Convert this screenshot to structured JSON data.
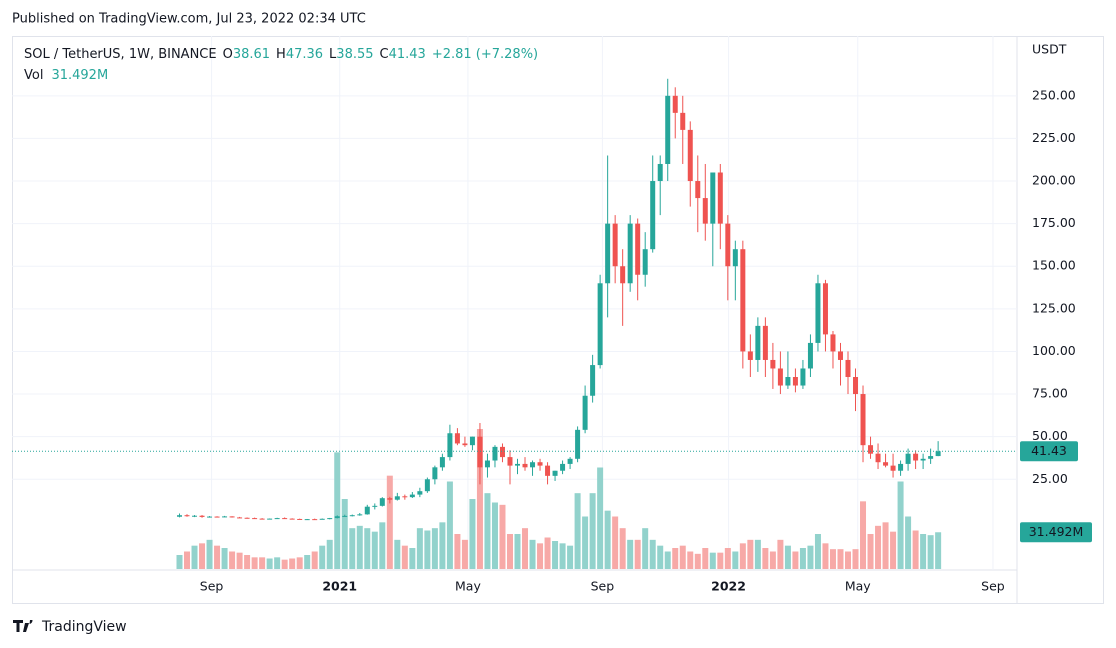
{
  "header": {
    "published": "Published on TradingView.com, Jul 23, 2022 02:34 UTC"
  },
  "footer": {
    "brand": "TradingView"
  },
  "chart_data": {
    "type": "candlestick",
    "symbol": "SOL / TetherUS, 1W, BINANCE",
    "legend": {
      "open_label": "O",
      "open": 38.61,
      "high_label": "H",
      "high": 47.36,
      "low_label": "L",
      "low": 38.55,
      "close_label": "C",
      "close": 41.43,
      "change": "+2.81 (+7.28%)",
      "volume_label": "Vol",
      "volume_value": "31.492M"
    },
    "currency": "USDT",
    "up_color": "#26a69a",
    "down_color": "#ef5350",
    "volume_up_color": "#92d2cc",
    "volume_down_color": "#f7a9a7",
    "grid": true,
    "xlim": [
      -22.3,
      111.5
    ],
    "xticks": [
      {
        "value": 4.27,
        "label": "Sep"
      },
      {
        "value": 21.33,
        "label": "2021"
      },
      {
        "value": 38.4,
        "label": "May"
      },
      {
        "value": 56.3,
        "label": "Sep"
      },
      {
        "value": 73.1,
        "label": "2022"
      },
      {
        "value": 90.3,
        "label": "May"
      },
      {
        "value": 108.3,
        "label": "Sep"
      }
    ],
    "ylim": [
      -48.2,
      285.1
    ],
    "yticks": [
      {
        "value": 25,
        "label": "25.00"
      },
      {
        "value": 50,
        "label": "50.00"
      },
      {
        "value": 75,
        "label": "75.00"
      },
      {
        "value": 100,
        "label": "100.00"
      },
      {
        "value": 125,
        "label": "125.00"
      },
      {
        "value": 150,
        "label": "150.00"
      },
      {
        "value": 175,
        "label": "175.00"
      },
      {
        "value": 200,
        "label": "200.00"
      },
      {
        "value": 225,
        "label": "225.00"
      },
      {
        "value": 250,
        "label": "250.00"
      }
    ],
    "candles": [
      [
        3.0,
        4.9,
        2.6,
        3.9
      ],
      [
        3.9,
        4.5,
        3.0,
        3.3
      ],
      [
        3.3,
        4.0,
        2.8,
        3.6
      ],
      [
        3.6,
        4.0,
        2.4,
        2.9
      ],
      [
        2.9,
        3.4,
        2.5,
        3.1
      ],
      [
        3.1,
        3.3,
        2.6,
        2.8
      ],
      [
        2.8,
        3.5,
        2.7,
        3.2
      ],
      [
        3.2,
        3.3,
        2.5,
        2.6
      ],
      [
        2.6,
        2.9,
        2.3,
        2.4
      ],
      [
        2.4,
        2.6,
        1.9,
        2.2
      ],
      [
        2.2,
        2.5,
        1.8,
        1.9
      ],
      [
        1.9,
        2.2,
        1.5,
        1.6
      ],
      [
        1.6,
        2.0,
        1.4,
        1.9
      ],
      [
        1.9,
        2.4,
        1.8,
        2.2
      ],
      [
        2.2,
        2.6,
        1.8,
        1.9
      ],
      [
        1.9,
        2.1,
        1.5,
        1.7
      ],
      [
        1.7,
        1.9,
        1.4,
        1.5
      ],
      [
        1.5,
        1.7,
        1.3,
        1.6
      ],
      [
        1.6,
        1.9,
        1.4,
        1.5
      ],
      [
        1.5,
        2.0,
        1.5,
        1.8
      ],
      [
        1.8,
        2.3,
        1.5,
        2.2
      ],
      [
        2.2,
        3.8,
        2.0,
        3.3
      ],
      [
        3.3,
        4.2,
        3.0,
        3.5
      ],
      [
        3.5,
        4.3,
        3.2,
        3.9
      ],
      [
        3.9,
        5.2,
        3.6,
        4.4
      ],
      [
        4.4,
        10.0,
        4.2,
        8.9
      ],
      [
        8.9,
        10.8,
        7.3,
        9.4
      ],
      [
        9.4,
        14.5,
        9.0,
        13.9
      ],
      [
        13.9,
        14.7,
        10.8,
        13.0
      ],
      [
        13.0,
        17.0,
        12.5,
        15.0
      ],
      [
        15.0,
        16.0,
        13.0,
        14.5
      ],
      [
        14.5,
        17.5,
        14.0,
        16.0
      ],
      [
        16.0,
        20.0,
        14.5,
        18.0
      ],
      [
        18.0,
        26.0,
        17.0,
        25.0
      ],
      [
        25.0,
        33.0,
        22.0,
        32.0
      ],
      [
        32.0,
        40.0,
        30.0,
        38.0
      ],
      [
        38.0,
        57.0,
        36.0,
        52.0
      ],
      [
        52.0,
        55.0,
        45.0,
        46.0
      ],
      [
        46.0,
        50.0,
        44.0,
        45.0
      ],
      [
        45.0,
        50.0,
        42.0,
        50.0
      ],
      [
        50.0,
        58.0,
        22.0,
        32.0
      ],
      [
        32.0,
        40.0,
        26.0,
        36.0
      ],
      [
        36.0,
        45.0,
        32.0,
        44.0
      ],
      [
        44.0,
        46.0,
        35.0,
        38.0
      ],
      [
        38.0,
        42.0,
        22.0,
        33.0
      ],
      [
        33.0,
        37.0,
        28.0,
        34.0
      ],
      [
        34.0,
        38.0,
        30.0,
        32.0
      ],
      [
        32.0,
        36.0,
        27.0,
        35.0
      ],
      [
        35.0,
        37.0,
        30.0,
        33.0
      ],
      [
        33.0,
        35.0,
        22.0,
        27.0
      ],
      [
        27.0,
        30.0,
        24.0,
        30.0
      ],
      [
        30.0,
        36.0,
        28.0,
        34.0
      ],
      [
        34.0,
        38.0,
        31.0,
        37.0
      ],
      [
        37.0,
        56.0,
        35.0,
        54.0
      ],
      [
        54.0,
        80.0,
        52.0,
        74.0
      ],
      [
        74.0,
        98.0,
        70.0,
        92.0
      ],
      [
        92.0,
        145.0,
        90.0,
        140.0
      ],
      [
        140.0,
        215.0,
        120.0,
        175.0
      ],
      [
        175.0,
        180.0,
        140.0,
        150.0
      ],
      [
        150.0,
        160.0,
        115.0,
        140.0
      ],
      [
        140.0,
        180.0,
        135.0,
        175.0
      ],
      [
        175.0,
        178.0,
        130.0,
        145.0
      ],
      [
        145.0,
        170.0,
        138.0,
        160.0
      ],
      [
        160.0,
        215.0,
        158.0,
        200.0
      ],
      [
        200.0,
        215.0,
        180.0,
        210.0
      ],
      [
        210.0,
        260.0,
        200.0,
        250.0
      ],
      [
        250.0,
        255.0,
        225.0,
        240.0
      ],
      [
        240.0,
        250.0,
        210.0,
        230.0
      ],
      [
        230.0,
        235.0,
        185.0,
        200.0
      ],
      [
        200.0,
        215.0,
        170.0,
        190.0
      ],
      [
        190.0,
        210.0,
        165.0,
        175.0
      ],
      [
        175.0,
        205.0,
        150.0,
        205.0
      ],
      [
        205.0,
        210.0,
        160.0,
        175.0
      ],
      [
        175.0,
        180.0,
        130.0,
        150.0
      ],
      [
        150.0,
        165.0,
        130.0,
        160.0
      ],
      [
        160.0,
        165.0,
        90.0,
        100.0
      ],
      [
        100.0,
        110.0,
        85.0,
        95.0
      ],
      [
        95.0,
        120.0,
        88.0,
        115.0
      ],
      [
        115.0,
        120.0,
        85.0,
        95.0
      ],
      [
        95.0,
        105.0,
        78.0,
        90.0
      ],
      [
        90.0,
        100.0,
        75.0,
        80.0
      ],
      [
        80.0,
        100.0,
        78.0,
        85.0
      ],
      [
        85.0,
        90.0,
        76.0,
        80.0
      ],
      [
        80.0,
        95.0,
        78.0,
        90.0
      ],
      [
        90.0,
        110.0,
        85.0,
        105.0
      ],
      [
        105.0,
        145.0,
        100.0,
        140.0
      ],
      [
        140.0,
        142.0,
        100.0,
        110.0
      ],
      [
        110.0,
        112.0,
        90.0,
        100.0
      ],
      [
        100.0,
        105.0,
        80.0,
        95.0
      ],
      [
        95.0,
        100.0,
        75.0,
        85.0
      ],
      [
        85.0,
        90.0,
        65.0,
        75.0
      ],
      [
        75.0,
        80.0,
        35.0,
        45.0
      ],
      [
        45.0,
        50.0,
        37.0,
        40.0
      ],
      [
        40.0,
        46.0,
        31.0,
        35.0
      ],
      [
        35.0,
        40.0,
        32.0,
        33.0
      ],
      [
        33.0,
        40.0,
        26.0,
        30.0
      ],
      [
        30.0,
        36.0,
        27.0,
        34.0
      ],
      [
        34.0,
        43.0,
        30.0,
        40.0
      ],
      [
        40.0,
        42.0,
        31.0,
        36.0
      ],
      [
        36.0,
        40.0,
        31.0,
        37.0
      ],
      [
        37.0,
        43.0,
        34.0,
        38.61
      ],
      [
        38.61,
        47.36,
        38.55,
        41.43
      ]
    ],
    "volume": [
      12,
      15,
      20,
      22,
      25,
      20,
      18,
      15,
      14,
      12,
      10,
      10,
      9,
      10,
      8,
      9,
      10,
      12,
      15,
      20,
      25,
      100,
      60,
      35,
      37,
      35,
      32,
      40,
      80,
      25,
      20,
      18,
      35,
      33,
      35,
      40,
      75,
      30,
      25,
      60,
      120,
      65,
      57,
      55,
      30,
      30,
      35,
      25,
      22,
      27,
      24,
      22,
      20,
      65,
      45,
      65,
      87,
      50,
      45,
      35,
      25,
      25,
      35,
      25,
      20,
      15,
      18,
      20,
      15,
      13,
      18,
      14,
      14,
      18,
      15,
      22,
      25,
      25,
      18,
      15,
      25,
      20,
      15,
      18,
      20,
      30,
      22,
      17,
      17,
      15,
      17,
      58,
      30,
      37,
      40,
      32,
      75,
      45,
      33,
      30,
      29,
      31.492
    ]
  }
}
